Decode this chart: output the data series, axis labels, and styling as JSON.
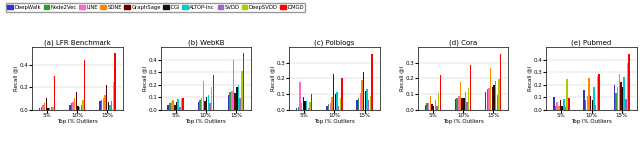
{
  "methods": [
    "DeepWalk",
    "Node2Vec",
    "LINE",
    "SDNE",
    "GraphSage",
    "DGI",
    "ALTOP-Inc",
    "SVDD",
    "DeepSVDD",
    "DMGD"
  ],
  "colors": [
    "#3333cc",
    "#339933",
    "#ff66cc",
    "#ff8800",
    "#660000",
    "#111111",
    "#00cccc",
    "#9966cc",
    "#aacc00",
    "#ff0000"
  ],
  "x_ticks": [
    "5%",
    "10%",
    "15%"
  ],
  "x_label": "Top l% Outliers",
  "y_label": "Recall @l",
  "datasets": [
    {
      "name": "(a) LFR Benchmark",
      "ylim": [
        0.0,
        0.56
      ],
      "yticks": [
        0.0,
        0.2,
        0.4
      ],
      "yticklabels": [
        "0.0",
        "0.2",
        "0.4"
      ],
      "values": {
        "DeepWalk": [
          0.01,
          0.04,
          0.08
        ],
        "Node2Vec": [
          0.02,
          0.055,
          0.09
        ],
        "LINE": [
          0.04,
          0.07,
          0.105
        ],
        "SDNE": [
          0.06,
          0.1,
          0.135
        ],
        "GraphSage": [
          0.105,
          0.155,
          0.225
        ],
        "DGI": [
          0.015,
          0.03,
          0.065
        ],
        "ALTOP-Inc": [
          0.01,
          0.025,
          0.045
        ],
        "SVDD": [
          0.02,
          0.045,
          0.075
        ],
        "DeepSVDD": [
          0.025,
          0.085,
          0.25
        ],
        "DMGD": [
          0.305,
          0.445,
          0.505
        ]
      }
    },
    {
      "name": "(b) WebKB",
      "ylim": [
        0.0,
        0.5
      ],
      "yticks": [
        0.0,
        0.1,
        0.2,
        0.3,
        0.4
      ],
      "yticklabels": [
        "0.0",
        "0.1",
        "0.2",
        "0.3",
        "0.4"
      ],
      "values": {
        "DeepWalk": [
          0.04,
          0.06,
          0.12
        ],
        "Node2Vec": [
          0.05,
          0.08,
          0.14
        ],
        "LINE": [
          0.06,
          0.09,
          0.15
        ],
        "SDNE": [
          0.08,
          0.23,
          0.395
        ],
        "GraphSage": [
          0.04,
          0.07,
          0.13
        ],
        "DGI": [
          0.06,
          0.1,
          0.18
        ],
        "ALTOP-Inc": [
          0.085,
          0.12,
          0.2
        ],
        "SVDD": [
          0.02,
          0.05,
          0.095
        ],
        "DeepSVDD": [
          0.09,
          0.185,
          0.31
        ],
        "DMGD": [
          0.095,
          0.275,
          0.455
        ]
      }
    },
    {
      "name": "(c) Polblogs",
      "ylim": [
        0.0,
        0.4
      ],
      "yticks": [
        0.0,
        0.1,
        0.2,
        0.3
      ],
      "yticklabels": [
        "0.0",
        "0.1",
        "0.2",
        "0.3"
      ],
      "values": {
        "DeepWalk": [
          0.01,
          0.025,
          0.06
        ],
        "Node2Vec": [
          0.015,
          0.035,
          0.075
        ],
        "LINE": [
          0.175,
          0.045,
          0.105
        ],
        "SDNE": [
          0.04,
          0.08,
          0.19
        ],
        "GraphSage": [
          0.08,
          0.23,
          0.24
        ],
        "DGI": [
          0.055,
          0.1,
          0.12
        ],
        "ALTOP-Inc": [
          0.055,
          0.11,
          0.13
        ],
        "SVDD": [
          0.01,
          0.025,
          0.06
        ],
        "DeepSVDD": [
          0.05,
          0.075,
          0.085
        ],
        "DMGD": [
          0.1,
          0.2,
          0.36
        ]
      }
    },
    {
      "name": "(d) Cora",
      "ylim": [
        0.0,
        0.4
      ],
      "yticks": [
        0.0,
        0.1,
        0.2,
        0.3
      ],
      "yticklabels": [
        "0.0",
        "0.1",
        "0.2",
        "0.3"
      ],
      "values": {
        "DeepWalk": [
          0.03,
          0.065,
          0.11
        ],
        "Node2Vec": [
          0.04,
          0.075,
          0.13
        ],
        "LINE": [
          0.045,
          0.085,
          0.14
        ],
        "SDNE": [
          0.085,
          0.18,
          0.265
        ],
        "GraphSage": [
          0.035,
          0.075,
          0.145
        ],
        "DGI": [
          0.025,
          0.075,
          0.155
        ],
        "ALTOP-Inc": [
          0.06,
          0.11,
          0.185
        ],
        "SVDD": [
          0.02,
          0.05,
          0.095
        ],
        "DeepSVDD": [
          0.105,
          0.14,
          0.195
        ],
        "DMGD": [
          0.225,
          0.285,
          0.355
        ]
      }
    },
    {
      "name": "(e) Pubmed",
      "ylim": [
        0.0,
        0.5
      ],
      "yticks": [
        0.0,
        0.1,
        0.2,
        0.3,
        0.4
      ],
      "yticklabels": [
        "0.0",
        "0.1",
        "0.2",
        "0.3",
        "0.4"
      ],
      "values": {
        "DeepWalk": [
          0.1,
          0.155,
          0.2
        ],
        "Node2Vec": [
          0.03,
          0.075,
          0.13
        ],
        "LINE": [
          0.06,
          0.105,
          0.185
        ],
        "SDNE": [
          0.03,
          0.25,
          0.285
        ],
        "GraphSage": [
          0.08,
          0.105,
          0.225
        ],
        "DGI": [
          0.025,
          0.08,
          0.185
        ],
        "ALTOP-Inc": [
          0.085,
          0.185,
          0.265
        ],
        "SVDD": [
          0.02,
          0.04,
          0.085
        ],
        "DeepSVDD": [
          0.245,
          0.27,
          0.375
        ],
        "DMGD": [
          0.095,
          0.285,
          0.445
        ]
      }
    }
  ]
}
